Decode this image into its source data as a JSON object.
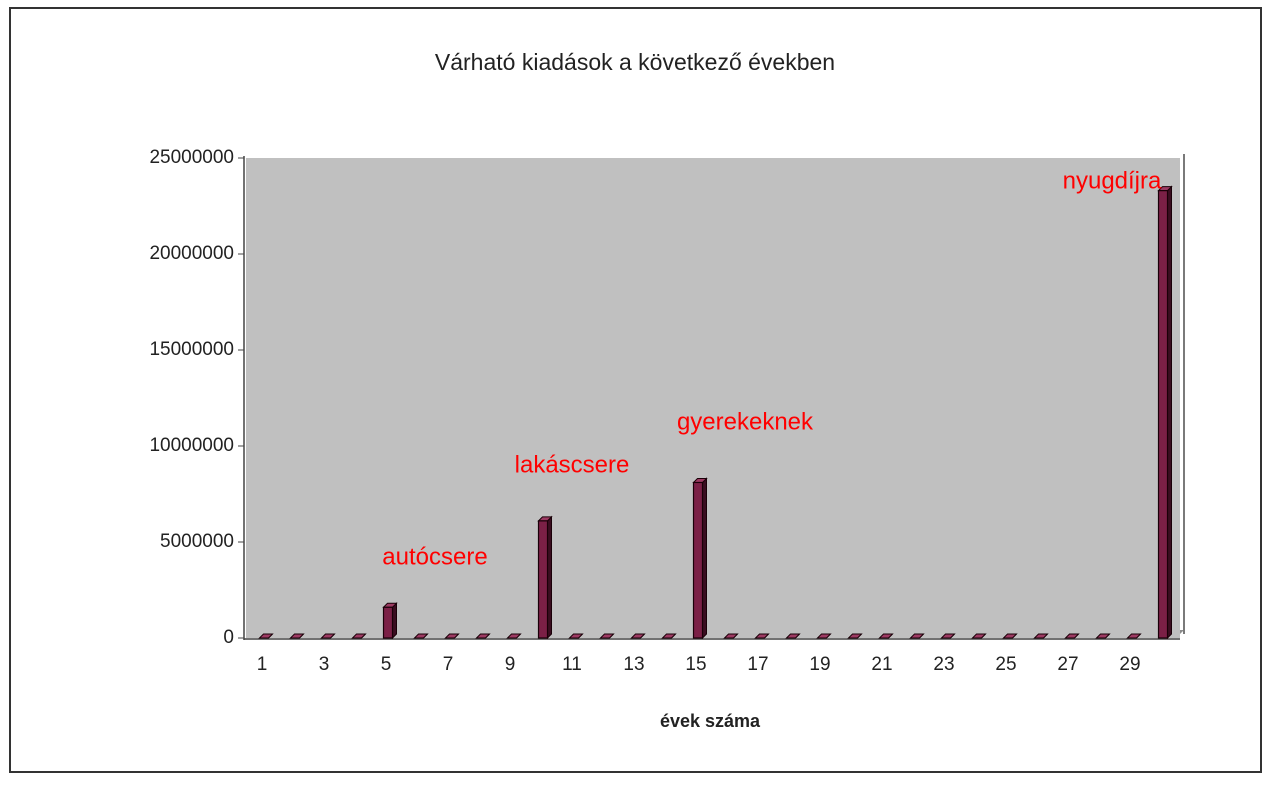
{
  "chart_data": {
    "type": "bar",
    "title": "Várható kiadások a következő években",
    "x_label": "évek száma",
    "categories": [
      1,
      null,
      3,
      null,
      5,
      null,
      7,
      null,
      9,
      null,
      11,
      null,
      13,
      null,
      15,
      null,
      17,
      null,
      19,
      null,
      21,
      null,
      23,
      null,
      25,
      null,
      27,
      null,
      29,
      null
    ],
    "values": [
      0,
      0,
      0,
      0,
      1600000,
      0,
      0,
      0,
      0,
      6100000,
      0,
      0,
      0,
      0,
      8100000,
      0,
      0,
      0,
      0,
      0,
      0,
      0,
      0,
      0,
      0,
      0,
      0,
      0,
      0,
      23300000
    ],
    "color": "#7b2046",
    "ylim": [
      0,
      25000000
    ],
    "yticks": [
      0,
      5000000,
      10000000,
      15000000,
      20000000,
      25000000
    ],
    "annotations": [
      "autócsere",
      "lakáscsere",
      "gyerekeknek",
      "nyugdíjra"
    ],
    "annotation_color": "#ff0000"
  }
}
